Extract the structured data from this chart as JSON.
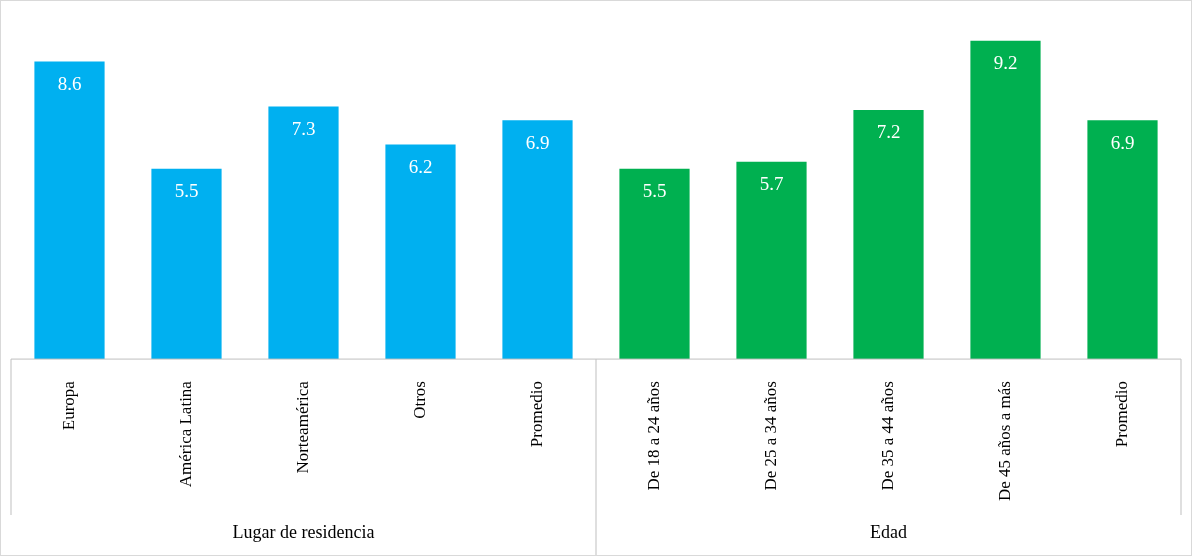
{
  "chart_data": {
    "type": "bar",
    "categories": [
      "Europa",
      "América Latina",
      "Norteamérica",
      "Otros",
      "Promedio",
      "De 18 a 24 años",
      "De 25 a 34 años",
      "De 35 a 44 años",
      "De 45 años a más",
      "Promedio"
    ],
    "values": [
      8.6,
      5.5,
      7.3,
      6.2,
      6.9,
      5.5,
      5.7,
      7.2,
      9.2,
      6.9
    ],
    "colors": [
      "#00b0f0",
      "#00b0f0",
      "#00b0f0",
      "#00b0f0",
      "#00b0f0",
      "#00b050",
      "#00b050",
      "#00b050",
      "#00b050",
      "#00b050"
    ],
    "data_labels": true,
    "annotations": [
      "Lugar de residencia",
      "Edad"
    ]
  }
}
